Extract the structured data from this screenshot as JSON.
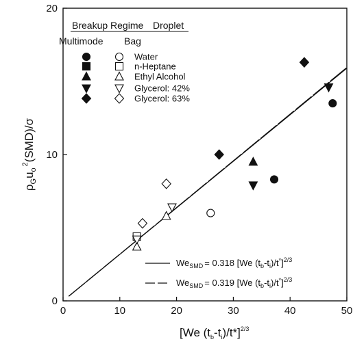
{
  "chart_data": {
    "type": "scatter",
    "xlim": [
      0,
      50
    ],
    "ylim": [
      0,
      20
    ],
    "x_ticks": [
      0,
      10,
      20,
      30,
      40,
      50
    ],
    "y_ticks": [
      0,
      10,
      20
    ],
    "grid": false,
    "legend_position": "top-left",
    "legend_header": {
      "col1": "Breakup Regime",
      "col2": "Droplet",
      "row1": "Multimode",
      "row2": "Bag"
    },
    "droplets": [
      "Water",
      "n-Heptane",
      "Ethyl Alcohol",
      "Glycerol: 42%",
      "Glycerol: 63%"
    ],
    "series": [
      {
        "name": "Water",
        "regime": "Multimode",
        "marker": "circle",
        "filled": true,
        "points": [
          [
            37.2,
            8.3
          ],
          [
            47.5,
            13.5
          ]
        ]
      },
      {
        "name": "Water",
        "regime": "Bag",
        "marker": "circle",
        "filled": false,
        "points": [
          [
            26,
            6.0
          ]
        ]
      },
      {
        "name": "n-Heptane",
        "regime": "Bag",
        "marker": "square",
        "filled": false,
        "points": [
          [
            13,
            4.4
          ]
        ]
      },
      {
        "name": "Ethyl Alcohol",
        "regime": "Multimode",
        "marker": "triangle-up",
        "filled": true,
        "points": [
          [
            33.5,
            9.5
          ]
        ]
      },
      {
        "name": "Ethyl Alcohol",
        "regime": "Bag",
        "marker": "triangle-up",
        "filled": false,
        "points": [
          [
            13,
            3.7
          ],
          [
            18.2,
            5.8
          ]
        ]
      },
      {
        "name": "Glycerol: 42%",
        "regime": "Multimode",
        "marker": "triangle-down",
        "filled": true,
        "points": [
          [
            33.5,
            7.9
          ],
          [
            46.8,
            14.6
          ]
        ]
      },
      {
        "name": "Glycerol: 42%",
        "regime": "Bag",
        "marker": "triangle-down",
        "filled": false,
        "points": [
          [
            13,
            4.2
          ],
          [
            19.2,
            6.4
          ]
        ]
      },
      {
        "name": "Glycerol: 63%",
        "regime": "Multimode",
        "marker": "diamond",
        "filled": true,
        "points": [
          [
            27.5,
            10.0
          ],
          [
            42.5,
            16.3
          ]
        ]
      },
      {
        "name": "Glycerol: 63%",
        "regime": "Bag",
        "marker": "diamond",
        "filled": false,
        "points": [
          [
            14,
            5.3
          ],
          [
            18.2,
            8.0
          ]
        ]
      }
    ],
    "fit_lines": [
      {
        "style": "solid",
        "slope": 0.318,
        "x_range": [
          1,
          50
        ],
        "eq_lhs": "We",
        "eq_lhs_sub": "SMD",
        "eq_rhs": "= 0.318 [We (t",
        "eq_b": "b",
        "eq_dash": "-t",
        "eq_i": "i",
        "eq_tail": ")/t",
        "eq_star": "*",
        "eq_close": "]",
        "eq_exp": "2/3"
      },
      {
        "style": "long-dash",
        "slope": 0.319,
        "x_range": [
          1,
          50
        ],
        "eq_lhs": "We",
        "eq_lhs_sub": "SMD",
        "eq_rhs": "= 0.319 [We (t",
        "eq_b": "b",
        "eq_dash": "-t",
        "eq_i": "i",
        "eq_tail": ")/t",
        "eq_star": "*",
        "eq_close": "]",
        "eq_exp": "2/3"
      }
    ],
    "xlabel": {
      "main": "[We (t",
      "b": "b",
      "mid": "-t",
      "i": "i",
      "tail": ")/t*]",
      "exp": "2/3"
    },
    "ylabel": {
      "rho": "ρ",
      "G": "G",
      "u": "u",
      "o": "o",
      "exp": "2",
      "rest": "(SMD)/σ"
    }
  }
}
